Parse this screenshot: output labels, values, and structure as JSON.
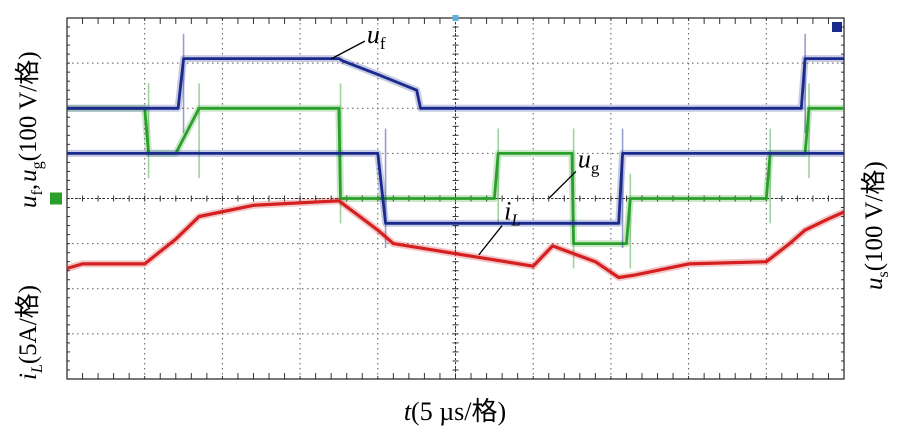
{
  "chart_data": {
    "type": "line",
    "title": "",
    "xlabel": {
      "var": "t",
      "unit": "(5 µs/格)"
    },
    "ylabel_left_top": {
      "main": "u",
      "sub1": "f",
      "sep": ",",
      "main2": "u",
      "sub2": "g",
      "unit": "(100 V/格)"
    },
    "ylabel_left_bottom": {
      "main": "i",
      "sub": "L",
      "unit": "(5A/格)"
    },
    "ylabel_right": {
      "main": "u",
      "sub": "s",
      "unit": "(100 V/格)"
    },
    "x_divisions": 10,
    "y_divisions": 8,
    "x_unit": "div (5 µs/div)",
    "y_unit": "div",
    "series": [
      {
        "name": "u_f",
        "color": "#1a2a8c",
        "x": [
          0.0,
          0.2,
          1.0,
          1.37,
          1.43,
          1.5,
          1.6,
          1.9,
          2.4,
          2.8,
          3.5,
          3.55,
          4.0,
          4.5,
          4.55,
          5.5,
          6.0,
          6.25,
          6.3,
          6.33,
          6.5,
          7.0,
          8.0,
          8.5,
          9.0,
          9.4,
          9.45,
          9.5,
          9.7,
          10.0
        ],
        "y": [
          6.0,
          6.0,
          6.0,
          6.0,
          6.0,
          7.1,
          7.1,
          7.1,
          7.1,
          7.1,
          7.1,
          7.05,
          6.75,
          6.4,
          6.0,
          6.0,
          6.0,
          6.0,
          6.0,
          6.0,
          6.0,
          6.0,
          6.0,
          6.0,
          6.0,
          6.0,
          6.0,
          7.1,
          7.1,
          7.1
        ]
      },
      {
        "name": "u_s",
        "color": "#1a2a8c",
        "x": [
          0.0,
          4.0,
          4.1,
          7.1,
          7.15,
          7.5,
          7.6,
          10.0
        ],
        "y": [
          5.0,
          5.0,
          3.45,
          3.45,
          5.0,
          5.0,
          5.0,
          5.0
        ]
      },
      {
        "name": "u_g",
        "color": "#2aa02a",
        "x": [
          0.0,
          0.2,
          1.0,
          1.05,
          1.4,
          1.7,
          3.5,
          3.52,
          3.7,
          5.5,
          5.55,
          6.5,
          6.52,
          7.2,
          7.25,
          9.0,
          9.05,
          9.5,
          9.55,
          10.0
        ],
        "y": [
          6.0,
          6.0,
          6.0,
          5.0,
          5.0,
          6.0,
          6.0,
          4.0,
          4.0,
          4.0,
          5.0,
          5.0,
          3.0,
          3.0,
          4.0,
          4.0,
          5.0,
          5.0,
          6.0,
          6.0
        ]
      },
      {
        "name": "i_L",
        "color": "#d42020",
        "x": [
          0.0,
          0.2,
          1.0,
          1.4,
          1.7,
          2.4,
          3.5,
          4.0,
          4.2,
          6.0,
          6.25,
          6.8,
          7.1,
          7.3,
          8.0,
          9.0,
          9.3,
          9.5,
          9.8,
          10.0
        ],
        "y": [
          2.45,
          2.55,
          2.55,
          3.1,
          3.6,
          3.85,
          3.95,
          3.3,
          3.0,
          2.5,
          2.95,
          2.6,
          2.25,
          2.3,
          2.55,
          2.6,
          3.0,
          3.3,
          3.55,
          3.7
        ]
      }
    ],
    "annotations": [
      {
        "series": "u_f",
        "main": "u",
        "sub": "f"
      },
      {
        "series": "i_L",
        "main": "i",
        "sub": "L"
      },
      {
        "series": "u_g",
        "main": "u",
        "sub": "g"
      }
    ],
    "grid": true
  },
  "colors": {
    "grid": "#5a5a5a",
    "frame": "#202020",
    "marker_left": "#2aa02a",
    "marker_left_box": "#1a2a8c",
    "marker_right": "#1a2a8c",
    "marker_top": "#5fb0e0"
  }
}
